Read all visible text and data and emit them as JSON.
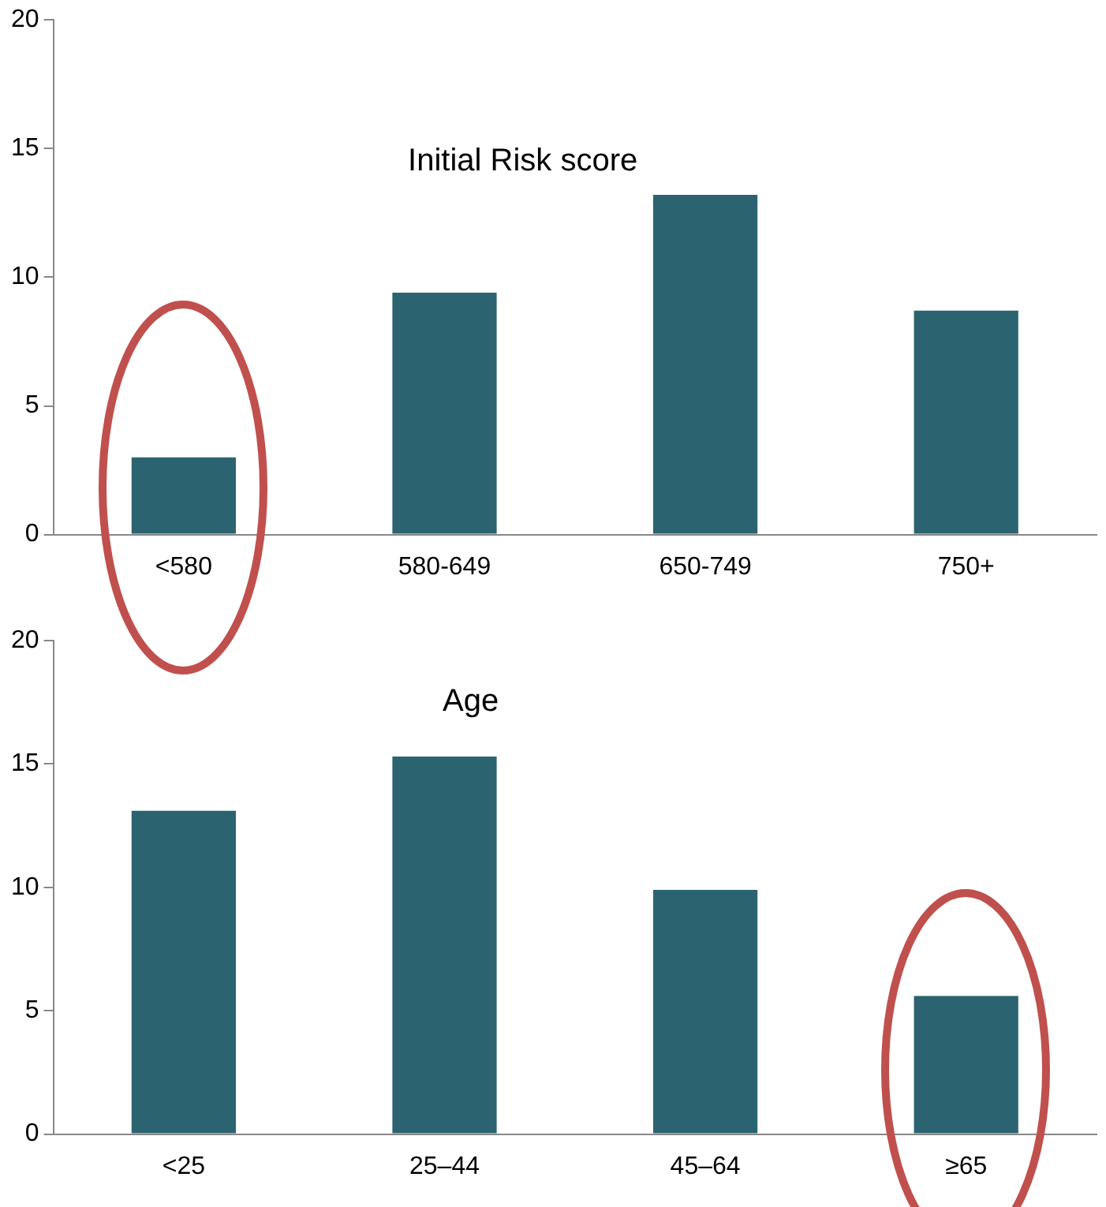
{
  "chart_data": [
    {
      "type": "bar",
      "title": "Initial Risk score",
      "categories": [
        "<580",
        "580-649",
        "650-749",
        "750+"
      ],
      "values": [
        3,
        9.4,
        13.2,
        8.7
      ],
      "color": "#2b6470",
      "ylim": [
        0,
        20
      ],
      "yticks": [
        0,
        5,
        10,
        15,
        20
      ],
      "grid": false,
      "legend": false
    },
    {
      "type": "bar",
      "title": "Age",
      "categories": [
        "<25",
        "25–44",
        "45–64",
        "≥65"
      ],
      "values": [
        13.1,
        15.3,
        9.9,
        5.6
      ],
      "color": "#2b6470",
      "ylim": [
        0,
        20
      ],
      "yticks": [
        0,
        5,
        10,
        15,
        20
      ],
      "grid": false,
      "legend": false
    }
  ]
}
